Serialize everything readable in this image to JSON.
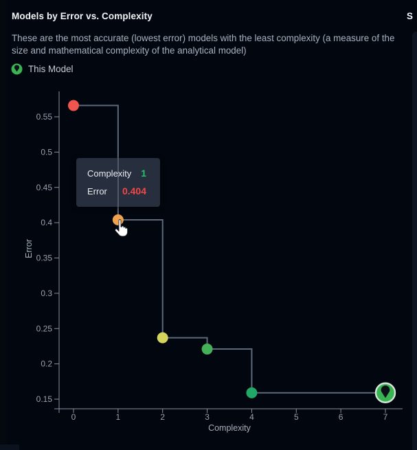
{
  "header": {
    "title": "Models by Error vs. Complexity",
    "adjacent_panel_title_partial": "S"
  },
  "description": "These are the most accurate (lowest error) models with the least complexity (a measure of the size and mathematical complexity of the analytical model)",
  "legend": {
    "label": "This Model",
    "icon": "map-pin-icon",
    "color": "#3ab353"
  },
  "tooltip": {
    "rows": [
      {
        "label": "Complexity",
        "value": "1",
        "value_color": "#26c16a"
      },
      {
        "label": "Error",
        "value": "0.404",
        "value_color": "#f04747"
      }
    ]
  },
  "chart_data": {
    "type": "scatter",
    "title": "Models by Error vs. Complexity",
    "xlabel": "Complexity",
    "ylabel": "Error",
    "xlim": [
      0,
      7
    ],
    "ylim": [
      0.15,
      0.57
    ],
    "grid": false,
    "legend_position": "top-left",
    "line_style": "step-after",
    "line_color": "#5e6a7c",
    "axis_color": "#8a93a2",
    "tick_label_color": "#99a2b1",
    "axis_title_color": "#a6b0bd",
    "x_ticks": [
      "0",
      "1",
      "2",
      "3",
      "4",
      "5",
      "6",
      "7"
    ],
    "y_ticks": [
      "0.15",
      "0.2",
      "0.25",
      "0.3",
      "0.35",
      "0.4",
      "0.45",
      "0.5",
      "0.55"
    ],
    "points": [
      {
        "complexity": 0,
        "error": 0.566,
        "color": "#f0564e"
      },
      {
        "complexity": 1,
        "error": 0.404,
        "color": "#f0a24f",
        "hovered": true
      },
      {
        "complexity": 2,
        "error": 0.237,
        "color": "#d5d55e"
      },
      {
        "complexity": 3,
        "error": 0.221,
        "color": "#44b057"
      },
      {
        "complexity": 4,
        "error": 0.159,
        "color": "#21a768"
      },
      {
        "complexity": 7,
        "error": 0.159,
        "color": "#3ab353",
        "marker": "this-model-pin",
        "ring_color": "#d7e4d9",
        "pin_color": "#0c1118"
      }
    ]
  }
}
